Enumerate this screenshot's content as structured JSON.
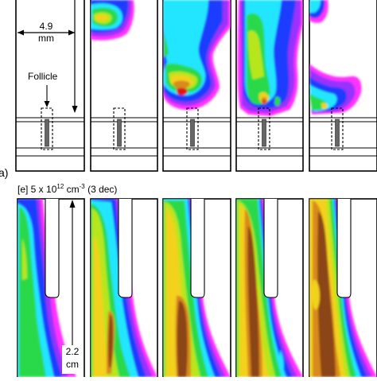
{
  "figure": {
    "top_row": {
      "annotation_width_value": "4.9",
      "annotation_width_unit": "mm",
      "follicle_label": "Follicle",
      "panel_label": "a)",
      "panel_count": 5
    },
    "bottom_row": {
      "caption_prefix": "[e] 5 x 10",
      "caption_exponent": "12",
      "caption_unit": " cm",
      "caption_unit_exponent": "-3",
      "caption_suffix": " (3 dec)",
      "annotation_length_value": "2.2",
      "annotation_length_unit": "cm",
      "panel_count": 5
    },
    "colors": {
      "magenta": "#ff33ff",
      "violet": "#9933ff",
      "blue": "#1a3cff",
      "cyan": "#22e6ff",
      "green": "#29d94a",
      "lime": "#b8e61a",
      "yellow": "#f2d21f",
      "orange": "#d98a1a",
      "brown": "#8b4513",
      "red": "#e01818"
    }
  }
}
